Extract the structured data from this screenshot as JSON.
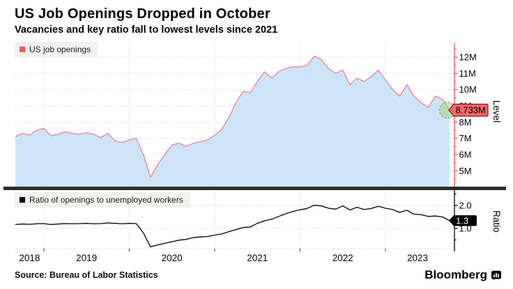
{
  "header": {
    "title": "US Job Openings Dropped in October",
    "subtitle": "Vacancies and key ratio fall to lowest levels since 2021"
  },
  "source": "Source: Bureau of Labor Statistics",
  "branding": {
    "name": "Bloomberg",
    "icon": "bloomberg-terminal-icon"
  },
  "colors": {
    "openings_line": "#ee7f97",
    "openings_area": "#c9e2f8",
    "openings_swatch": "#f2575c",
    "level_axis": "#e8505a",
    "value_tag_fill": "#f2666a",
    "value_tag_border": "#801d20",
    "highlight_circle_fill": "#a8cf87",
    "highlight_circle_border": "#7da953",
    "ratio_line": "#000000",
    "ratio_tag_fill": "#000000",
    "gridline": "#c8c8c8",
    "divider": "#2d2d2d",
    "legend_bg": "#f1f1ef"
  },
  "x_axis": {
    "year_labels": [
      "2018",
      "2019",
      "2020",
      "2021",
      "2022",
      "2023"
    ]
  },
  "chart_data": [
    {
      "type": "area",
      "legend": "US job openings",
      "axis_label": "Level",
      "x_monthly_start": "2018-09",
      "x_monthly_end": "2023-10",
      "unit": "millions",
      "values": [
        7.1,
        7.3,
        7.2,
        7.5,
        7.6,
        7.15,
        7.25,
        7.4,
        7.3,
        7.25,
        7.35,
        7.25,
        7.05,
        7.3,
        6.85,
        6.75,
        6.9,
        7.0,
        6.0,
        4.6,
        5.4,
        6.0,
        6.6,
        6.7,
        6.5,
        6.7,
        6.8,
        6.9,
        7.2,
        7.55,
        8.3,
        9.2,
        9.9,
        9.8,
        10.5,
        11.1,
        10.7,
        11.1,
        11.3,
        11.4,
        11.4,
        11.5,
        12.05,
        11.85,
        11.3,
        11.0,
        11.2,
        10.3,
        10.7,
        10.5,
        10.8,
        11.2,
        10.6,
        10.0,
        9.6,
        10.3,
        9.6,
        9.2,
        8.9,
        9.6,
        9.4,
        8.733
      ],
      "ylim": [
        4.0,
        12.85
      ],
      "ytick_values": [
        5,
        6,
        7,
        8,
        9,
        10,
        11,
        12
      ],
      "ytick_labels": [
        "5M",
        "6M",
        "7M",
        "8M",
        "9M",
        "10M",
        "11M",
        "12M"
      ],
      "last_value": 8.733,
      "last_value_label": "8.733M",
      "highlight": "green-circle-on-last-point",
      "legend_position": "top-left",
      "grid": true
    },
    {
      "type": "line",
      "legend": "Ratio of openings to unemployed workers",
      "axis_label": "Ratio",
      "x_monthly_start": "2018-09",
      "x_monthly_end": "2023-10",
      "values": [
        1.17,
        1.19,
        1.18,
        1.2,
        1.21,
        1.17,
        1.19,
        1.21,
        1.2,
        1.21,
        1.22,
        1.2,
        1.21,
        1.24,
        1.22,
        1.2,
        1.22,
        1.21,
        0.8,
        0.2,
        0.28,
        0.35,
        0.42,
        0.49,
        0.52,
        0.6,
        0.63,
        0.65,
        0.71,
        0.76,
        0.86,
        0.95,
        1.04,
        1.06,
        1.22,
        1.33,
        1.4,
        1.52,
        1.64,
        1.74,
        1.81,
        1.87,
        2.01,
        1.98,
        1.88,
        1.84,
        1.98,
        1.8,
        1.92,
        1.82,
        1.87,
        1.96,
        1.88,
        1.82,
        1.7,
        1.79,
        1.62,
        1.6,
        1.52,
        1.54,
        1.5,
        1.34
      ],
      "ylim": [
        0.1,
        2.6
      ],
      "ytick_values_major": [
        2.0,
        1.0
      ],
      "ytick_labels_major": [
        "2.0",
        "1.0"
      ],
      "ytick_values_minor": [
        2.5,
        1.5,
        0.5
      ],
      "last_value": 1.34,
      "last_value_label": "1.3",
      "legend_position": "top-left",
      "grid": true
    }
  ]
}
